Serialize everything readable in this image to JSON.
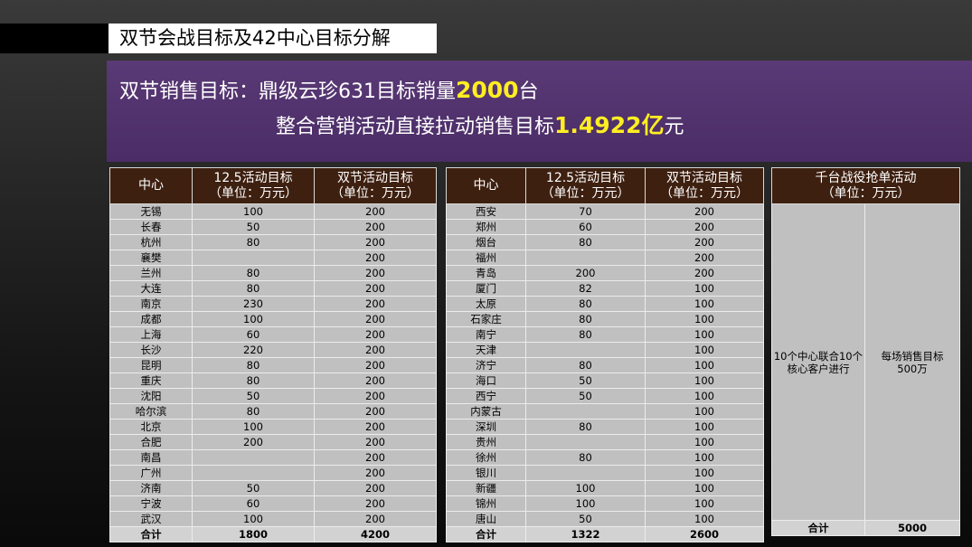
{
  "title": "双节会战目标及42中心目标分解",
  "banner": {
    "line1_prefix": "双节销售目标：鼎级云珍631目标销量",
    "line1_value": "2000",
    "line1_suffix": "台",
    "line2_prefix": "整合营销活动直接拉动销售目标",
    "line2_value": "1.4922亿",
    "line2_suffix": "元"
  },
  "colors": {
    "header_bg": "#3e2010",
    "banner_bg": "#4a2c66",
    "highlight": "#ffee22",
    "cell_bg": "#c0c0c0"
  },
  "table1": {
    "headers": [
      "中心",
      "12.5活动目标\n（单位：万元）",
      "双节活动目标\n（单位：万元）"
    ],
    "rows": [
      [
        "无锡",
        "100",
        "200"
      ],
      [
        "长春",
        "50",
        "200"
      ],
      [
        "杭州",
        "80",
        "200"
      ],
      [
        "襄樊",
        "",
        "200"
      ],
      [
        "兰州",
        "80",
        "200"
      ],
      [
        "大连",
        "80",
        "200"
      ],
      [
        "南京",
        "230",
        "200"
      ],
      [
        "成都",
        "100",
        "200"
      ],
      [
        "上海",
        "60",
        "200"
      ],
      [
        "长沙",
        "220",
        "200"
      ],
      [
        "昆明",
        "80",
        "200"
      ],
      [
        "重庆",
        "80",
        "200"
      ],
      [
        "沈阳",
        "50",
        "200"
      ],
      [
        "哈尔滨",
        "80",
        "200"
      ],
      [
        "北京",
        "100",
        "200"
      ],
      [
        "合肥",
        "200",
        "200"
      ],
      [
        "南昌",
        "",
        "200"
      ],
      [
        "广州",
        "",
        "200"
      ],
      [
        "济南",
        "50",
        "200"
      ],
      [
        "宁波",
        "60",
        "200"
      ],
      [
        "武汉",
        "100",
        "200"
      ]
    ],
    "total": [
      "合计",
      "1800",
      "4200"
    ]
  },
  "table2": {
    "headers": [
      "中心",
      "12.5活动目标\n（单位：万元）",
      "双节活动目标\n（单位：万元）"
    ],
    "rows": [
      [
        "西安",
        "70",
        "200"
      ],
      [
        "郑州",
        "60",
        "200"
      ],
      [
        "烟台",
        "80",
        "200"
      ],
      [
        "福州",
        "",
        "200"
      ],
      [
        "青岛",
        "200",
        "200"
      ],
      [
        "厦门",
        "82",
        "100"
      ],
      [
        "太原",
        "80",
        "100"
      ],
      [
        "石家庄",
        "80",
        "100"
      ],
      [
        "南宁",
        "80",
        "100"
      ],
      [
        "天津",
        "",
        "100"
      ],
      [
        "济宁",
        "80",
        "100"
      ],
      [
        "海口",
        "50",
        "100"
      ],
      [
        "西宁",
        "50",
        "100"
      ],
      [
        "内蒙古",
        "",
        "100"
      ],
      [
        "深圳",
        "80",
        "100"
      ],
      [
        "贵州",
        "",
        "100"
      ],
      [
        "徐州",
        "80",
        "100"
      ],
      [
        "银川",
        "",
        "100"
      ],
      [
        "新疆",
        "100",
        "100"
      ],
      [
        "锦州",
        "100",
        "100"
      ],
      [
        "唐山",
        "50",
        "100"
      ]
    ],
    "total": [
      "合计",
      "1322",
      "2600"
    ]
  },
  "table3": {
    "header": "千台战役抢单活动\n（单位：万元）",
    "cell_left": "10个中心联合10个核心客户进行",
    "cell_right": "每场销售目标\n500万",
    "total_label": "合计",
    "total_value": "5000"
  }
}
